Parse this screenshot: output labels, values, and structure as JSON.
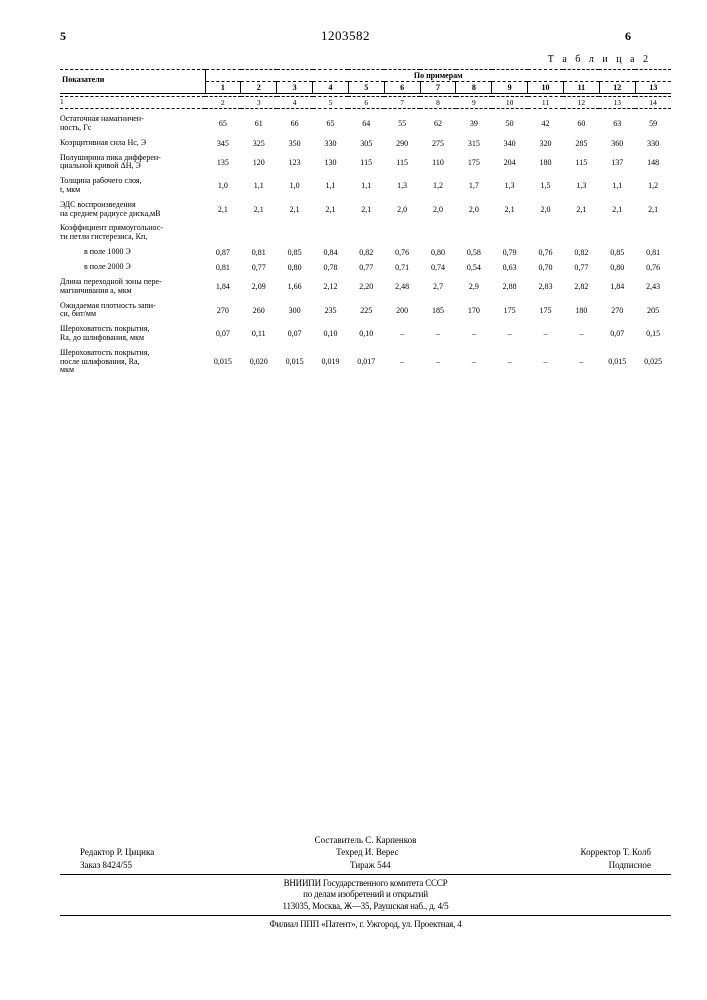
{
  "doc_number": "1203582",
  "col_left": "5",
  "col_right": "6",
  "table_label": "Т а б л и ц а   2",
  "header_stub": "Показатели",
  "header_group": "По примерам",
  "col_numbers": [
    "1",
    "2",
    "3",
    "4",
    "5",
    "6",
    "7",
    "8",
    "9",
    "10",
    "11",
    "12",
    "13"
  ],
  "index_row": [
    "1",
    "2",
    "3",
    "4",
    "5",
    "6",
    "7",
    "8",
    "9",
    "10",
    "11",
    "12",
    "13",
    "14"
  ],
  "rows": [
    {
      "label": "Остаточная намагничен-\nность, Гс",
      "v": [
        "65",
        "61",
        "66",
        "65",
        "64",
        "55",
        "62",
        "39",
        "50",
        "42",
        "60",
        "63",
        "59"
      ]
    },
    {
      "label": "Коэрцитивная сила Нс, Э",
      "v": [
        "345",
        "325",
        "350",
        "330",
        "305",
        "290",
        "275",
        "315",
        "340",
        "320",
        "285",
        "360",
        "330"
      ]
    },
    {
      "label": "Полуширина пика дифферен-\nциальной кривой ΔН, Э",
      "v": [
        "135",
        "120",
        "123",
        "130",
        "115",
        "115",
        "110",
        "175",
        "204",
        "180",
        "115",
        "137",
        "148"
      ]
    },
    {
      "label": "Толщина рабочего слоя,\nt, мкм",
      "v": [
        "1,0",
        "1,1",
        "1,0",
        "1,1",
        "1,1",
        "1,3",
        "1,2",
        "1,7",
        "1,3",
        "1,5",
        "1,3",
        "1,1",
        "1,2"
      ]
    },
    {
      "label": "ЭДС воспроизведения\nна среднем радиусе диска,мВ",
      "v": [
        "2,1",
        "2,1",
        "2,1",
        "2,1",
        "2,1",
        "2,0",
        "2,0",
        "2,0",
        "2,1",
        "2,0",
        "2,1",
        "2,1",
        "2,1"
      ]
    },
    {
      "label": "Коэффициент прямоугольнос-\nти петли гистерезиса, Кп,",
      "v": [
        "",
        "",
        "",
        "",
        "",
        "",
        "",
        "",
        "",
        "",
        "",
        "",
        ""
      ]
    },
    {
      "label": "в поле 1000 Э",
      "indent": true,
      "v": [
        "0,87",
        "0,81",
        "0,85",
        "0,84",
        "0,82",
        "0,76",
        "0,80",
        "0,58",
        "0,79",
        "0,76",
        "0,82",
        "0,85",
        "0,81"
      ]
    },
    {
      "label": "в поле 2000 Э",
      "indent": true,
      "v": [
        "0,81",
        "0,77",
        "0,80",
        "0,78",
        "0,77",
        "0,71",
        "0,74",
        "0,54",
        "0,63",
        "0,70",
        "0,77",
        "0,80",
        "0,76"
      ]
    },
    {
      "label": "Длина переходной зоны пере-\nмагничивания  а, мкм",
      "v": [
        "1,84",
        "2,09",
        "1,66",
        "2,12",
        "2,20",
        "2,48",
        "2,7",
        "2,9",
        "2,88",
        "2,83",
        "2,82",
        "1,84",
        "2,43"
      ]
    },
    {
      "label": "Ожидаемая плотность запи-\nси, бит/мм",
      "v": [
        "270",
        "260",
        "300",
        "235",
        "225",
        "200",
        "185",
        "170",
        "175",
        "175",
        "180",
        "270",
        "205"
      ]
    },
    {
      "label": "Шероховатость покрытия,\nRа, до шлифования, мкм",
      "v": [
        "0,07",
        "0,11",
        "0,07",
        "0,10",
        "0,10",
        "–",
        "–",
        "–",
        "–",
        "–",
        "–",
        "0,07",
        "0,15"
      ]
    },
    {
      "label": "Шероховатость покрытия,\nпосле шлифования, Rа,\nмкм",
      "v": [
        "0,015",
        "0,020",
        "0,015",
        "0,019",
        "0,017",
        "–",
        "–",
        "–",
        "–",
        "–",
        "–",
        "0,015",
        "0,025"
      ]
    }
  ],
  "footer": {
    "compiler": "Составитель С. Карпенков",
    "editor": "Редактор Р. Цицика",
    "techred": "Техред И. Верес",
    "corrector": "Корректор Т. Колб",
    "order": "Заказ 8424/55",
    "tirage": "Тираж 544",
    "subscr": "Подписное",
    "org1": "ВНИИПИ  Государственного  комитета  СССР",
    "org2": "по  делам  изобретений  и  открытий",
    "addr": "113035,  Москва,  Ж—35,  Раушская  наб.,  д.  4/5",
    "branch": "Филиал  ППП  «Патент»,  г. Ужгород,  ул.  Проектная,  4"
  }
}
